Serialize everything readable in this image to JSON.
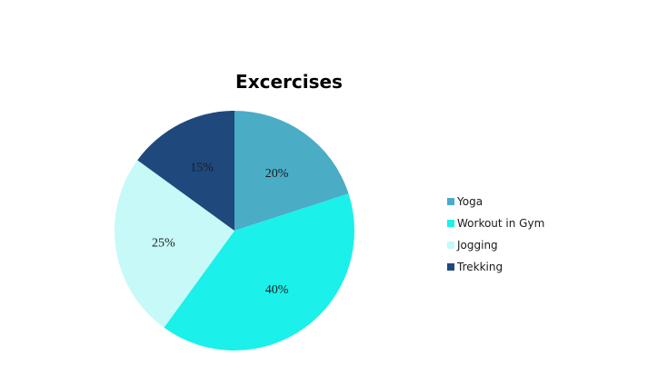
{
  "chart_data": {
    "type": "pie",
    "title": "Excercises",
    "categories": [
      "Yoga",
      "Workout in Gym",
      "Jogging",
      "Trekking"
    ],
    "values": [
      20,
      40,
      25,
      15
    ],
    "labels": [
      "20%",
      "40%",
      "25%",
      "15%"
    ],
    "colors": [
      "#4BACC6",
      "#1BF0EA",
      "#C6F9F8",
      "#1F497D"
    ],
    "legend_position": "right"
  }
}
